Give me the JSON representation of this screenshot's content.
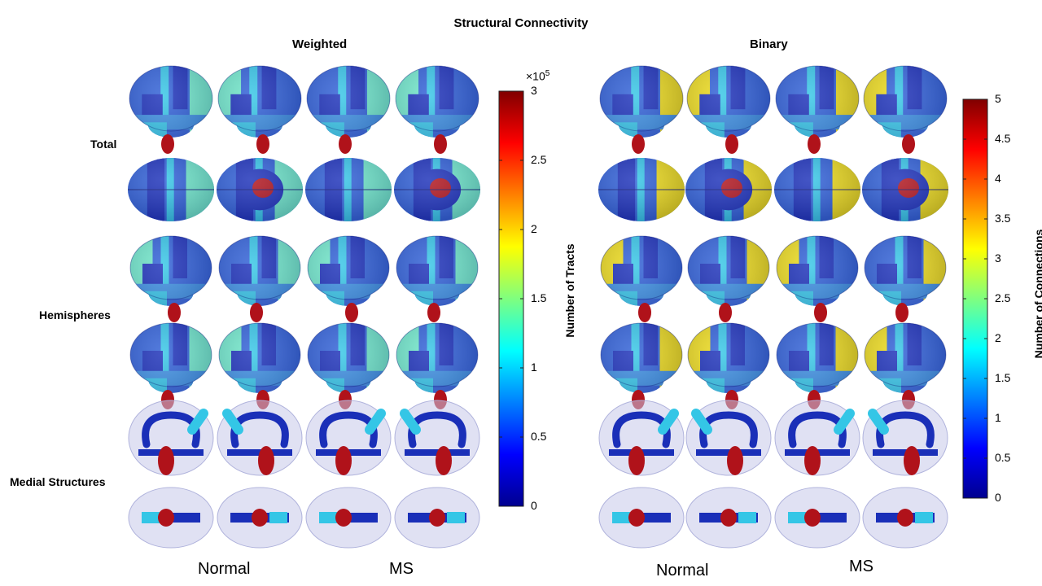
{
  "figure_title": "Structural Connectivity",
  "panels": [
    {
      "title": "Weighted",
      "colorbar": {
        "label": "Number of Tracts",
        "exponent_base": "×10",
        "exponent_power": "5",
        "ticks": [
          "0",
          "0.5",
          "1",
          "1.5",
          "2",
          "2.5",
          "3"
        ],
        "min": 0,
        "max": 3
      }
    },
    {
      "title": "Binary",
      "colorbar": {
        "label": "Number of Connections",
        "ticks": [
          "0",
          "0.5",
          "1",
          "1.5",
          "2",
          "2.5",
          "3",
          "3.5",
          "4",
          "4.5",
          "5"
        ],
        "min": 0,
        "max": 5
      }
    }
  ],
  "row_labels": [
    "Total",
    "Hemispheres",
    "Medial Structures"
  ],
  "group_labels": {
    "normal": "Normal",
    "ms": "MS"
  },
  "colors": {
    "dark_blue": "#1a2fb8",
    "blue": "#2e5fd6",
    "mid_blue": "#3a8ee0",
    "cyan": "#34c6e6",
    "aqua": "#6ee8c8",
    "yellow": "#eedc16",
    "red": "#b0121a",
    "glass": "#c6c8ea"
  }
}
